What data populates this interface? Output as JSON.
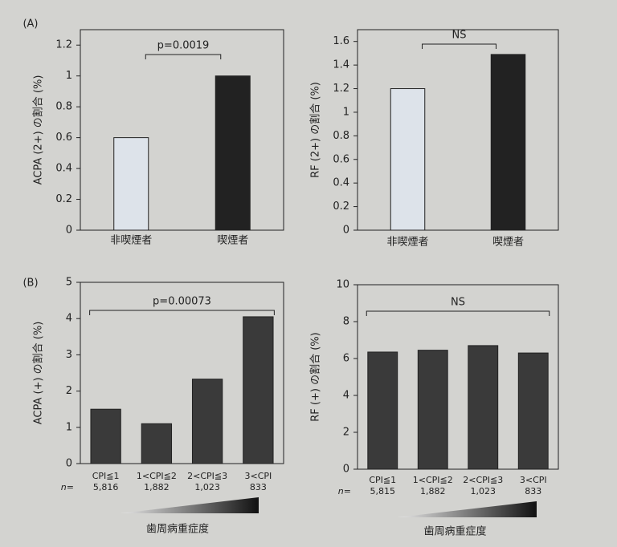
{
  "chart_data": [
    {
      "type": "bar",
      "panel": "(A)",
      "ylabel": "ACPA (2+) の割合 (%)",
      "categories": [
        "非喫煙者",
        "喫煙者"
      ],
      "values": [
        0.6,
        1.0
      ],
      "colors": [
        "#dde3ea",
        "#222222"
      ],
      "ylim": [
        0,
        1.3
      ],
      "yticks": [
        0,
        0.2,
        0.4,
        0.6,
        0.8,
        1,
        1.2
      ],
      "annotation": "p=0.0019"
    },
    {
      "type": "bar",
      "ylabel": "RF (2+) の割合 (%)",
      "categories": [
        "非喫煙者",
        "喫煙者"
      ],
      "values": [
        1.2,
        1.49
      ],
      "colors": [
        "#dde3ea",
        "#222222"
      ],
      "ylim": [
        0,
        1.7
      ],
      "yticks": [
        0,
        0.2,
        0.4,
        0.6,
        0.8,
        1,
        1.2,
        1.4,
        1.6
      ],
      "annotation": "NS"
    },
    {
      "type": "bar",
      "panel": "(B)",
      "ylabel": "ACPA (+) の割合 (%)",
      "categories": [
        "CPI≦1",
        "1<CPI≦2",
        "2<CPI≦3",
        "3<CPI"
      ],
      "n_label": "n=",
      "n": [
        "5,816",
        "1,882",
        "1,023",
        "833"
      ],
      "values": [
        1.5,
        1.1,
        2.33,
        4.05
      ],
      "color": "#3a3a3a",
      "ylim": [
        0,
        5
      ],
      "yticks": [
        0,
        1,
        2,
        3,
        4,
        5
      ],
      "annotation": "p=0.00073",
      "xlabel": "歯周病重症度"
    },
    {
      "type": "bar",
      "ylabel": "RF (+) の割合 (%)",
      "categories": [
        "CPI≦1",
        "1<CPI≦2",
        "2<CPI≦3",
        "3<CPI"
      ],
      "n_label": "n=",
      "n": [
        "5,815",
        "1,882",
        "1,023",
        "833"
      ],
      "values": [
        6.35,
        6.45,
        6.7,
        6.3
      ],
      "color": "#3a3a3a",
      "ylim": [
        0,
        10
      ],
      "yticks": [
        0,
        2,
        4,
        6,
        8,
        10
      ],
      "annotation": "NS",
      "xlabel": "歯周病重症度"
    }
  ]
}
